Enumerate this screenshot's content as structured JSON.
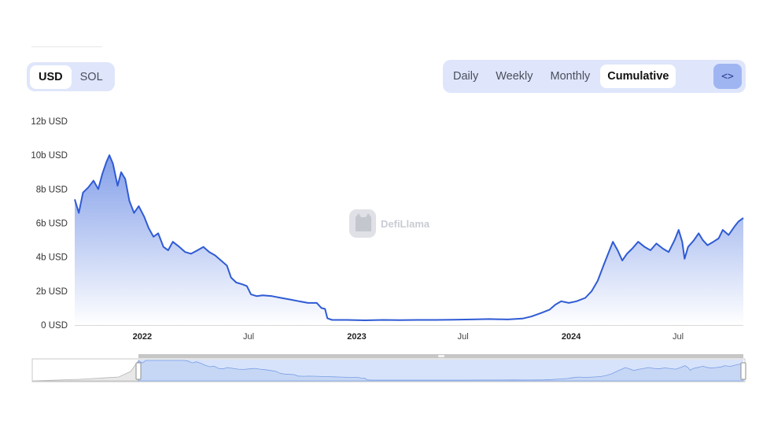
{
  "currency_toggle": {
    "options": [
      "USD",
      "SOL"
    ],
    "selected": "USD"
  },
  "period_toggle": {
    "options": [
      "Daily",
      "Weekly",
      "Monthly",
      "Cumulative"
    ],
    "selected": "Cumulative",
    "embed_icon": "code-brackets-icon",
    "embed_label": "<>"
  },
  "watermark": "DefiLlama",
  "colors": {
    "line": "#2f5bd4",
    "fill_top": "#7e9be8",
    "fill_bottom": "#ffffff",
    "toggle_bg": "#dfe6fb",
    "brush_fill": "#d7e3fa"
  },
  "chart_data": {
    "type": "area",
    "title": "",
    "xlabel": "",
    "ylabel": "",
    "yunit": "USD",
    "ylim": [
      0,
      12
    ],
    "grid": false,
    "legend": "none",
    "y_ticks": [
      {
        "value": 0,
        "label": "0 USD"
      },
      {
        "value": 2,
        "label": "2b USD"
      },
      {
        "value": 4,
        "label": "4b USD"
      },
      {
        "value": 6,
        "label": "6b USD"
      },
      {
        "value": 8,
        "label": "8b USD"
      },
      {
        "value": 10,
        "label": "10b USD"
      },
      {
        "value": 12,
        "label": "12b USD"
      }
    ],
    "x_ticks": [
      {
        "date": "2022-01-01",
        "label": "2022",
        "major": true
      },
      {
        "date": "2022-07-01",
        "label": "Jul",
        "major": false
      },
      {
        "date": "2023-01-01",
        "label": "2023",
        "major": true
      },
      {
        "date": "2023-07-01",
        "label": "Jul",
        "major": false
      },
      {
        "date": "2024-01-01",
        "label": "2024",
        "major": true
      },
      {
        "date": "2024-07-01",
        "label": "Jul",
        "major": false
      }
    ],
    "xlim": [
      "2021-09-08",
      "2024-10-20"
    ],
    "series": [
      {
        "points": [
          [
            "2021-09-08",
            7.4
          ],
          [
            "2021-09-15",
            6.6
          ],
          [
            "2021-09-22",
            7.8
          ],
          [
            "2021-10-01",
            8.1
          ],
          [
            "2021-10-10",
            8.5
          ],
          [
            "2021-10-18",
            8.0
          ],
          [
            "2021-10-25",
            8.9
          ],
          [
            "2021-11-01",
            9.6
          ],
          [
            "2021-11-06",
            10.0
          ],
          [
            "2021-11-12",
            9.5
          ],
          [
            "2021-11-20",
            8.2
          ],
          [
            "2021-11-26",
            9.0
          ],
          [
            "2021-12-03",
            8.6
          ],
          [
            "2021-12-10",
            7.3
          ],
          [
            "2021-12-18",
            6.6
          ],
          [
            "2021-12-26",
            7.0
          ],
          [
            "2022-01-04",
            6.4
          ],
          [
            "2022-01-12",
            5.7
          ],
          [
            "2022-01-20",
            5.2
          ],
          [
            "2022-01-28",
            5.4
          ],
          [
            "2022-02-06",
            4.6
          ],
          [
            "2022-02-14",
            4.4
          ],
          [
            "2022-02-22",
            4.9
          ],
          [
            "2022-03-05",
            4.6
          ],
          [
            "2022-03-15",
            4.3
          ],
          [
            "2022-03-25",
            4.2
          ],
          [
            "2022-04-05",
            4.4
          ],
          [
            "2022-04-15",
            4.6
          ],
          [
            "2022-04-25",
            4.3
          ],
          [
            "2022-05-05",
            4.1
          ],
          [
            "2022-05-15",
            3.8
          ],
          [
            "2022-05-25",
            3.5
          ],
          [
            "2022-06-01",
            2.8
          ],
          [
            "2022-06-10",
            2.5
          ],
          [
            "2022-06-20",
            2.4
          ],
          [
            "2022-06-28",
            2.3
          ],
          [
            "2022-07-05",
            1.8
          ],
          [
            "2022-07-15",
            1.7
          ],
          [
            "2022-07-25",
            1.75
          ],
          [
            "2022-08-10",
            1.7
          ],
          [
            "2022-08-25",
            1.6
          ],
          [
            "2022-09-10",
            1.5
          ],
          [
            "2022-09-25",
            1.4
          ],
          [
            "2022-10-10",
            1.3
          ],
          [
            "2022-10-25",
            1.3
          ],
          [
            "2022-11-02",
            1.0
          ],
          [
            "2022-11-08",
            0.95
          ],
          [
            "2022-11-12",
            0.4
          ],
          [
            "2022-11-20",
            0.3
          ],
          [
            "2022-12-15",
            0.3
          ],
          [
            "2023-01-15",
            0.28
          ],
          [
            "2023-02-15",
            0.3
          ],
          [
            "2023-03-15",
            0.29
          ],
          [
            "2023-04-15",
            0.3
          ],
          [
            "2023-05-15",
            0.3
          ],
          [
            "2023-06-15",
            0.31
          ],
          [
            "2023-07-15",
            0.33
          ],
          [
            "2023-08-15",
            0.35
          ],
          [
            "2023-09-15",
            0.33
          ],
          [
            "2023-10-10",
            0.38
          ],
          [
            "2023-10-25",
            0.5
          ],
          [
            "2023-11-10",
            0.7
          ],
          [
            "2023-11-25",
            0.9
          ],
          [
            "2023-12-05",
            1.2
          ],
          [
            "2023-12-15",
            1.4
          ],
          [
            "2023-12-28",
            1.3
          ],
          [
            "2024-01-10",
            1.4
          ],
          [
            "2024-01-25",
            1.6
          ],
          [
            "2024-02-05",
            2.0
          ],
          [
            "2024-02-15",
            2.6
          ],
          [
            "2024-02-25",
            3.5
          ],
          [
            "2024-03-05",
            4.3
          ],
          [
            "2024-03-12",
            4.9
          ],
          [
            "2024-03-20",
            4.4
          ],
          [
            "2024-03-28",
            3.8
          ],
          [
            "2024-04-05",
            4.2
          ],
          [
            "2024-04-14",
            4.5
          ],
          [
            "2024-04-24",
            4.9
          ],
          [
            "2024-05-05",
            4.6
          ],
          [
            "2024-05-15",
            4.4
          ],
          [
            "2024-05-25",
            4.8
          ],
          [
            "2024-06-05",
            4.5
          ],
          [
            "2024-06-15",
            4.3
          ],
          [
            "2024-06-25",
            5.0
          ],
          [
            "2024-07-02",
            5.6
          ],
          [
            "2024-07-08",
            4.9
          ],
          [
            "2024-07-12",
            3.9
          ],
          [
            "2024-07-18",
            4.6
          ],
          [
            "2024-07-28",
            5.0
          ],
          [
            "2024-08-05",
            5.4
          ],
          [
            "2024-08-12",
            5.0
          ],
          [
            "2024-08-20",
            4.7
          ],
          [
            "2024-08-30",
            4.9
          ],
          [
            "2024-09-08",
            5.1
          ],
          [
            "2024-09-15",
            5.6
          ],
          [
            "2024-09-25",
            5.3
          ],
          [
            "2024-10-05",
            5.8
          ],
          [
            "2024-10-12",
            6.1
          ],
          [
            "2024-10-20",
            6.3
          ]
        ]
      }
    ]
  }
}
